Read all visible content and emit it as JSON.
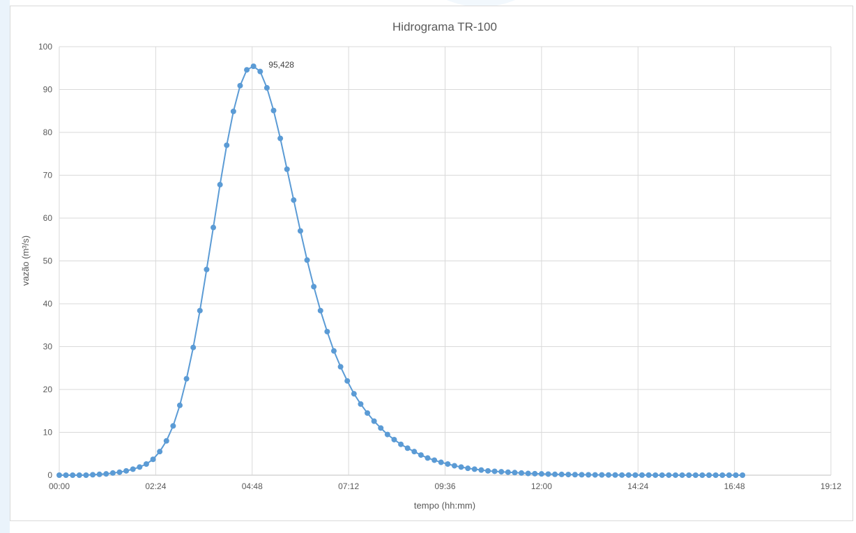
{
  "chart_data": {
    "type": "line",
    "title": "Hidrograma TR-100",
    "xlabel": "tempo (hh:mm)",
    "ylabel": "vazão (m³/s)",
    "x_unit": "minutes",
    "xlim": [
      0,
      1152
    ],
    "ylim": [
      0,
      100
    ],
    "x_ticks": [
      0,
      144,
      288,
      432,
      576,
      720,
      864,
      1008,
      1152
    ],
    "x_tick_labels": [
      "00:00",
      "02:24",
      "04:48",
      "07:12",
      "09:36",
      "12:00",
      "14:24",
      "16:48",
      "19:12"
    ],
    "y_ticks": [
      0,
      10,
      20,
      30,
      40,
      50,
      60,
      70,
      80,
      90,
      100
    ],
    "y_tick_labels": [
      "0",
      "10",
      "20",
      "30",
      "40",
      "50",
      "60",
      "70",
      "80",
      "90",
      "100"
    ],
    "grid": true,
    "legend": "none",
    "color": "#5b9bd5",
    "annotation": {
      "text": "95,428",
      "x": 300,
      "y": 95.428
    },
    "series": [
      {
        "x": [
          0,
          10,
          20,
          30,
          40,
          50,
          60,
          70,
          80,
          90,
          100,
          110,
          120,
          130,
          140,
          150,
          160,
          170,
          180,
          190,
          200,
          210,
          220,
          230,
          240,
          250,
          260,
          270,
          280,
          290,
          300,
          310,
          320,
          330,
          340,
          350,
          360,
          370,
          380,
          390,
          400,
          410,
          420,
          430,
          440,
          450,
          460,
          470,
          480,
          490,
          500,
          510,
          520,
          530,
          540,
          550,
          560,
          570,
          580,
          590,
          600,
          610,
          620,
          630,
          640,
          650,
          660,
          670,
          680,
          690,
          700,
          710,
          720,
          730,
          740,
          750,
          760,
          770,
          780,
          790,
          800,
          810,
          820,
          830,
          840,
          850,
          860,
          870,
          880,
          890,
          900,
          910,
          920,
          930,
          940,
          950,
          960,
          970,
          980,
          990,
          1000,
          1010,
          1020
        ],
        "values": [
          0,
          0,
          0,
          0,
          0,
          0.1,
          0.2,
          0.3,
          0.5,
          0.7,
          1.0,
          1.4,
          1.9,
          2.6,
          3.7,
          5.5,
          8.0,
          11.5,
          16.3,
          22.5,
          29.8,
          38.4,
          48.0,
          57.8,
          67.8,
          77.0,
          84.9,
          90.9,
          94.6,
          95.428,
          94.2,
          90.4,
          85.1,
          78.6,
          71.4,
          64.2,
          57.0,
          50.2,
          44.0,
          38.4,
          33.5,
          29.0,
          25.3,
          22.0,
          19.0,
          16.6,
          14.5,
          12.6,
          11.0,
          9.5,
          8.3,
          7.2,
          6.3,
          5.5,
          4.7,
          4.0,
          3.5,
          3.0,
          2.6,
          2.2,
          1.9,
          1.6,
          1.4,
          1.2,
          1.0,
          0.9,
          0.8,
          0.7,
          0.6,
          0.5,
          0.4,
          0.35,
          0.3,
          0.25,
          0.2,
          0.18,
          0.15,
          0.12,
          0.1,
          0.08,
          0.07,
          0.06,
          0.05,
          0.04,
          0.03,
          0.03,
          0.02,
          0.02,
          0.02,
          0.01,
          0.01,
          0.01,
          0.01,
          0.01,
          0,
          0,
          0,
          0,
          0,
          0,
          0,
          0,
          0
        ]
      }
    ]
  }
}
